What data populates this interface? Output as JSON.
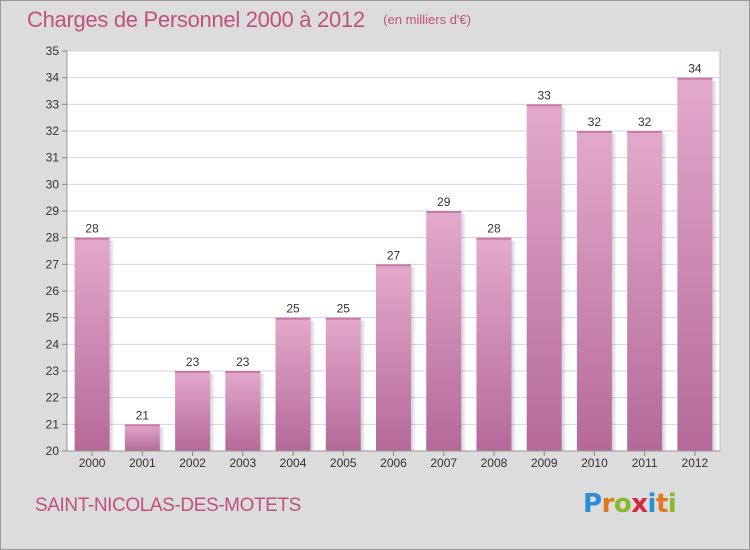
{
  "header": {
    "title": "Charges de Personnel 2000 à 2012",
    "subtitle": "(en milliers d'€)"
  },
  "footer": {
    "place": "SAINT-NICOLAS-DES-MOTETS",
    "logo_text": "Proxiti",
    "logo_colors": [
      "#2a8fd6",
      "#e07a1f",
      "#8ab82a",
      "#d7263d",
      "#2a8fd6",
      "#e07a1f",
      "#8ab82a"
    ]
  },
  "chart_data": {
    "type": "bar",
    "categories": [
      "2000",
      "2001",
      "2002",
      "2003",
      "2004",
      "2005",
      "2006",
      "2007",
      "2008",
      "2009",
      "2010",
      "2011",
      "2012"
    ],
    "values": [
      28,
      21,
      23,
      23,
      25,
      25,
      27,
      29,
      28,
      33,
      32,
      32,
      34
    ],
    "title": "Charges de Personnel 2000 à 2012",
    "subtitle": "(en milliers d'€)",
    "ylim": [
      20,
      35
    ],
    "yticks": [
      20,
      21,
      22,
      23,
      24,
      25,
      26,
      27,
      28,
      29,
      30,
      31,
      32,
      33,
      34,
      35
    ],
    "grid": true,
    "bar_color_light": "#e3a9cb",
    "bar_color_dark": "#b5699a",
    "data_labels": true
  }
}
